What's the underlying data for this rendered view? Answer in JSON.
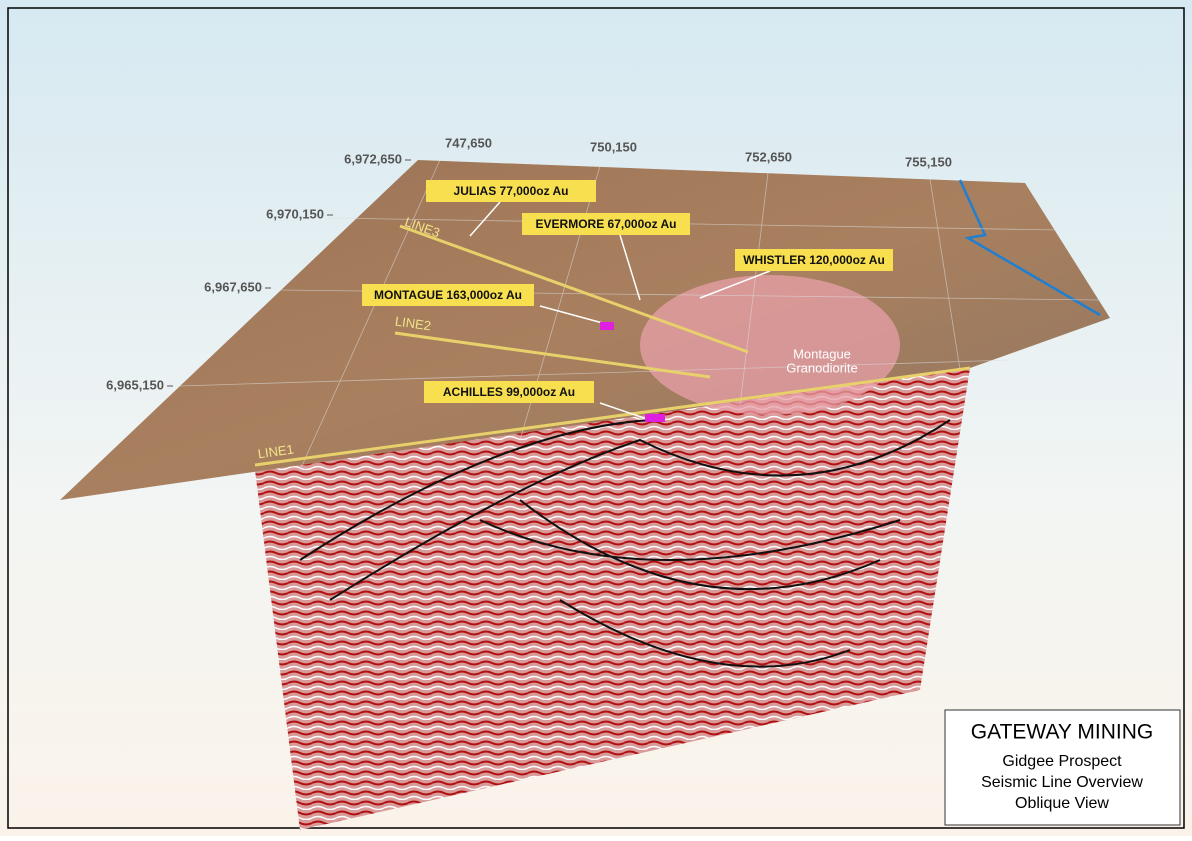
{
  "easting_labels": [
    "747,650",
    "750,150",
    "752,650",
    "755,150"
  ],
  "northing_labels": [
    "6,972,650",
    "6,970,150",
    "6,967,650",
    "6,965,150"
  ],
  "seismic_lines": [
    "LINE3",
    "LINE2",
    "LINE1"
  ],
  "deposits": [
    "JULIAS 77,000oz Au",
    "EVERMORE 67,000oz Au",
    "WHISTLER 120,000oz Au",
    "MONTAGUE 163,000oz Au",
    "ACHILLES 99,000oz Au"
  ],
  "geology": [
    "Montague",
    "Granodiorite"
  ],
  "legend": {
    "title": "GATEWAY MINING",
    "lines": [
      "Gidgee Prospect",
      "Seismic Line Overview",
      "Oblique View"
    ]
  }
}
